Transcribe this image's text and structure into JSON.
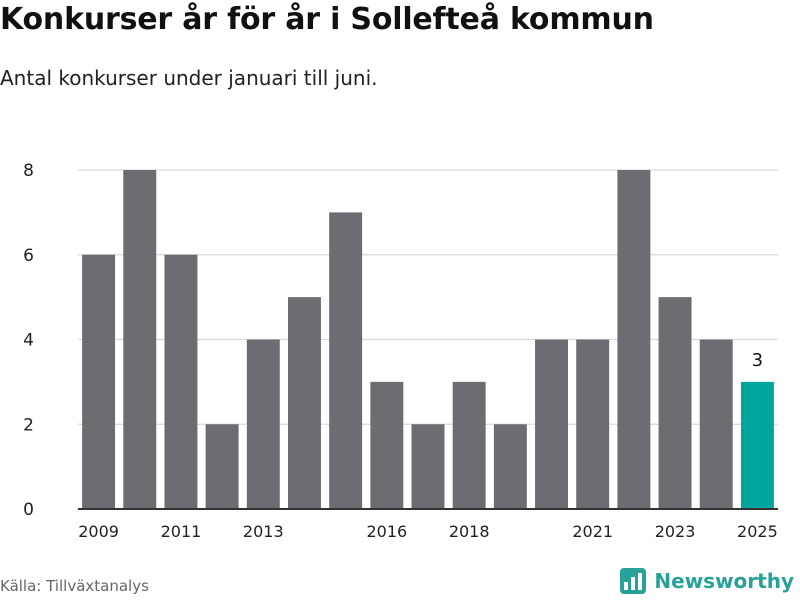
{
  "title": "Konkurser år för år i Sollefteå kommun",
  "subtitle": "Antal konkurser under januari till juni.",
  "source": "Källa: Tillväxtanalys",
  "brand": {
    "name": "Newsworthy",
    "icon": "newsworthy-logo-icon"
  },
  "colors": {
    "bar": "#6d6c72",
    "highlight": "#00a69c",
    "grid": "#d9d9d9",
    "axis": "#333333"
  },
  "chart_data": {
    "type": "bar",
    "title": "",
    "xlabel": "",
    "ylabel": "",
    "x": [
      2009,
      2010,
      2011,
      2012,
      2013,
      2014,
      2015,
      2016,
      2017,
      2018,
      2019,
      2020,
      2021,
      2022,
      2023,
      2024,
      2025
    ],
    "values": [
      6,
      8,
      6,
      2,
      4,
      5,
      7,
      3,
      2,
      3,
      2,
      4,
      4,
      8,
      5,
      4,
      3
    ],
    "x_tick_labels": [
      2009,
      2011,
      2013,
      2016,
      2018,
      2021,
      2023,
      2025
    ],
    "ylim": [
      0,
      8
    ],
    "y_ticks": [
      0,
      2,
      4,
      6,
      8
    ],
    "grid": true,
    "highlight": {
      "x": 2025,
      "label": "3"
    }
  }
}
